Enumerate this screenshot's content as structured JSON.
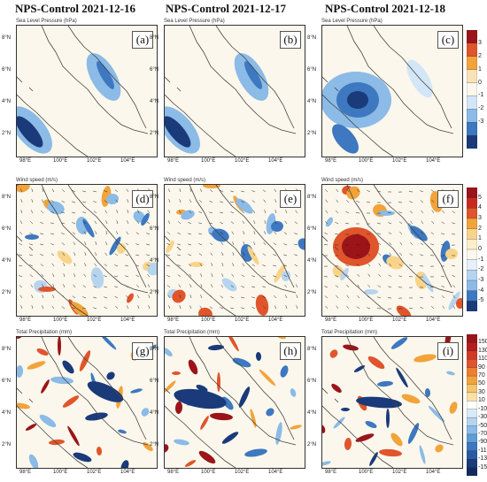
{
  "columns": [
    "NPS-Control 2021-12-16",
    "NPS-Control 2021-12-17",
    "NPS-Control 2021-12-18"
  ],
  "rows": [
    {
      "variable": "Sea Level Pressure (hPa)",
      "letters": [
        "(a)",
        "(b)",
        "(c)"
      ]
    },
    {
      "variable": "Wind speed (m/s)",
      "letters": [
        "(d)",
        "(e)",
        "(f)"
      ]
    },
    {
      "variable": "Total Precipitation (mm)",
      "letters": [
        "(g)",
        "(h)",
        "(i)"
      ]
    }
  ],
  "map_ticks": {
    "lon": [
      "98°E",
      "100°E",
      "102°E",
      "104°E"
    ],
    "lat": [
      "8°N",
      "6°N",
      "4°N",
      "2°N"
    ]
  },
  "colors": {
    "deep_blue": "#1a3a7a",
    "mid_blue": "#3d78c0",
    "light_blue": "#8bbbe6",
    "pale_blue": "#d3e6f7",
    "neutral": "#fbf7ec",
    "pale_orange": "#f8e3b8",
    "orange": "#f2a33a",
    "red_orange": "#e0552b",
    "dark_red": "#9b1418",
    "coast": "#444444"
  },
  "chart_data": [
    {
      "type": "heatmap",
      "title": "NPS-Control 2021-12-16",
      "panel": "(a)",
      "variable": "Sea Level Pressure (hPa)",
      "colorbar": {
        "ticks": [
          "3",
          "2",
          "1",
          "0",
          "-1",
          "-2",
          "-3"
        ]
      },
      "xlabel_ticks": [
        "98°E",
        "100°E",
        "102°E",
        "104°E"
      ],
      "ylabel_ticks": [
        "8°N",
        "6°N",
        "4°N",
        "2°N"
      ]
    },
    {
      "type": "heatmap",
      "title": "NPS-Control 2021-12-17",
      "panel": "(b)",
      "variable": "Sea Level Pressure (hPa)",
      "colorbar": {
        "ticks": [
          "3",
          "2",
          "1",
          "0",
          "-1",
          "-2",
          "-3"
        ]
      },
      "xlabel_ticks": [
        "98°E",
        "100°E",
        "102°E",
        "104°E"
      ],
      "ylabel_ticks": [
        "8°N",
        "6°N",
        "4°N",
        "2°N"
      ]
    },
    {
      "type": "heatmap",
      "title": "NPS-Control 2021-12-18",
      "panel": "(c)",
      "variable": "Sea Level Pressure (hPa)",
      "colorbar": {
        "ticks": [
          "3",
          "2",
          "1",
          "0",
          "-1",
          "-2",
          "-3"
        ]
      },
      "xlabel_ticks": [
        "98°E",
        "100°E",
        "102°E",
        "104°E"
      ],
      "ylabel_ticks": [
        "8°N",
        "6°N",
        "4°N",
        "2°N"
      ]
    },
    {
      "type": "heatmap",
      "title": "NPS-Control 2021-12-16",
      "panel": "(d)",
      "variable": "Wind speed (m/s)",
      "colorbar": {
        "ticks": [
          "5",
          "4",
          "3",
          "2",
          "1",
          "0",
          "-1",
          "-2",
          "-3",
          "-4",
          "-5"
        ]
      },
      "xlabel_ticks": [
        "98°E",
        "100°E",
        "102°E",
        "104°E"
      ],
      "ylabel_ticks": [
        "8°N",
        "6°N",
        "4°N",
        "2°N"
      ]
    },
    {
      "type": "heatmap",
      "title": "NPS-Control 2021-12-17",
      "panel": "(e)",
      "variable": "Wind speed (m/s)",
      "colorbar": {
        "ticks": [
          "5",
          "4",
          "3",
          "2",
          "1",
          "0",
          "-1",
          "-2",
          "-3",
          "-4",
          "-5"
        ]
      },
      "xlabel_ticks": [
        "98°E",
        "100°E",
        "102°E",
        "104°E"
      ],
      "ylabel_ticks": [
        "8°N",
        "6°N",
        "4°N",
        "2°N"
      ]
    },
    {
      "type": "heatmap",
      "title": "NPS-Control 2021-12-18",
      "panel": "(f)",
      "variable": "Wind speed (m/s)",
      "colorbar": {
        "ticks": [
          "5",
          "4",
          "3",
          "2",
          "1",
          "0",
          "-1",
          "-2",
          "-3",
          "-4",
          "-5"
        ]
      },
      "xlabel_ticks": [
        "98°E",
        "100°E",
        "102°E",
        "104°E"
      ],
      "ylabel_ticks": [
        "8°N",
        "6°N",
        "4°N",
        "2°N"
      ]
    },
    {
      "type": "heatmap",
      "title": "NPS-Control 2021-12-16",
      "panel": "(g)",
      "variable": "Total Precipitation (mm)",
      "colorbar": {
        "ticks": [
          "150",
          "130",
          "110",
          "90",
          "70",
          "50",
          "30",
          "10",
          "-10",
          "-30",
          "-50",
          "-70",
          "-90",
          "-110",
          "-130",
          "-150"
        ]
      },
      "xlabel_ticks": [
        "98°E",
        "100°E",
        "102°E",
        "104°E"
      ],
      "ylabel_ticks": [
        "8°N",
        "6°N",
        "4°N",
        "2°N"
      ]
    },
    {
      "type": "heatmap",
      "title": "NPS-Control 2021-12-17",
      "panel": "(h)",
      "variable": "Total Precipitation (mm)",
      "colorbar": {
        "ticks": [
          "150",
          "130",
          "110",
          "90",
          "70",
          "50",
          "30",
          "10",
          "-10",
          "-30",
          "-50",
          "-70",
          "-90",
          "-110",
          "-130",
          "-150"
        ]
      },
      "xlabel_ticks": [
        "98°E",
        "100°E",
        "102°E",
        "104°E"
      ],
      "ylabel_ticks": [
        "8°N",
        "6°N",
        "4°N",
        "2°N"
      ]
    },
    {
      "type": "heatmap",
      "title": "NPS-Control 2021-12-18",
      "panel": "(i)",
      "variable": "Total Precipitation (mm)",
      "colorbar": {
        "ticks": [
          "150",
          "130",
          "110",
          "90",
          "70",
          "50",
          "30",
          "10",
          "-10",
          "-30",
          "-50",
          "-70",
          "-90",
          "-110",
          "-130",
          "-150"
        ]
      },
      "xlabel_ticks": [
        "98°E",
        "100°E",
        "102°E",
        "104°E"
      ],
      "ylabel_ticks": [
        "8°N",
        "6°N",
        "4°N",
        "2°N"
      ]
    }
  ],
  "colorbars": [
    {
      "name": "slp",
      "ticks": [
        "3",
        "2",
        "1",
        "0",
        "-1",
        "-2",
        "-3"
      ],
      "colors": [
        "#9b1418",
        "#e0552b",
        "#f2a33a",
        "#f8e3b8",
        "#fbf7ec",
        "#d3e6f7",
        "#8bbbe6",
        "#3d78c0",
        "#1a3a7a"
      ]
    },
    {
      "name": "wind",
      "ticks": [
        "5",
        "4",
        "3",
        "2",
        "1",
        "0",
        "-1",
        "-2",
        "-3",
        "-4",
        "-5"
      ],
      "colors": [
        "#9b1418",
        "#c62a1f",
        "#e0552b",
        "#f2a33a",
        "#f8d48a",
        "#fbeec8",
        "#fbf7ec",
        "#e5f0fa",
        "#b7d4ef",
        "#8bbbe6",
        "#3d78c0",
        "#1a3a7a"
      ]
    },
    {
      "name": "precip",
      "ticks": [
        "150",
        "130",
        "110",
        "90",
        "70",
        "50",
        "30",
        "10",
        "-10",
        "-30",
        "-50",
        "-70",
        "-90",
        "-110",
        "-130",
        "-150"
      ],
      "colors": [
        "#9b1418",
        "#b61d1d",
        "#d23a25",
        "#e0552b",
        "#ee7f31",
        "#f2a33a",
        "#f6c56b",
        "#fae0a6",
        "#ffffff",
        "#d9ebf8",
        "#b7d4ef",
        "#8bbbe6",
        "#609dd6",
        "#3d78c0",
        "#2a5aa0",
        "#1a3a7a",
        "#112a5e"
      ]
    }
  ]
}
